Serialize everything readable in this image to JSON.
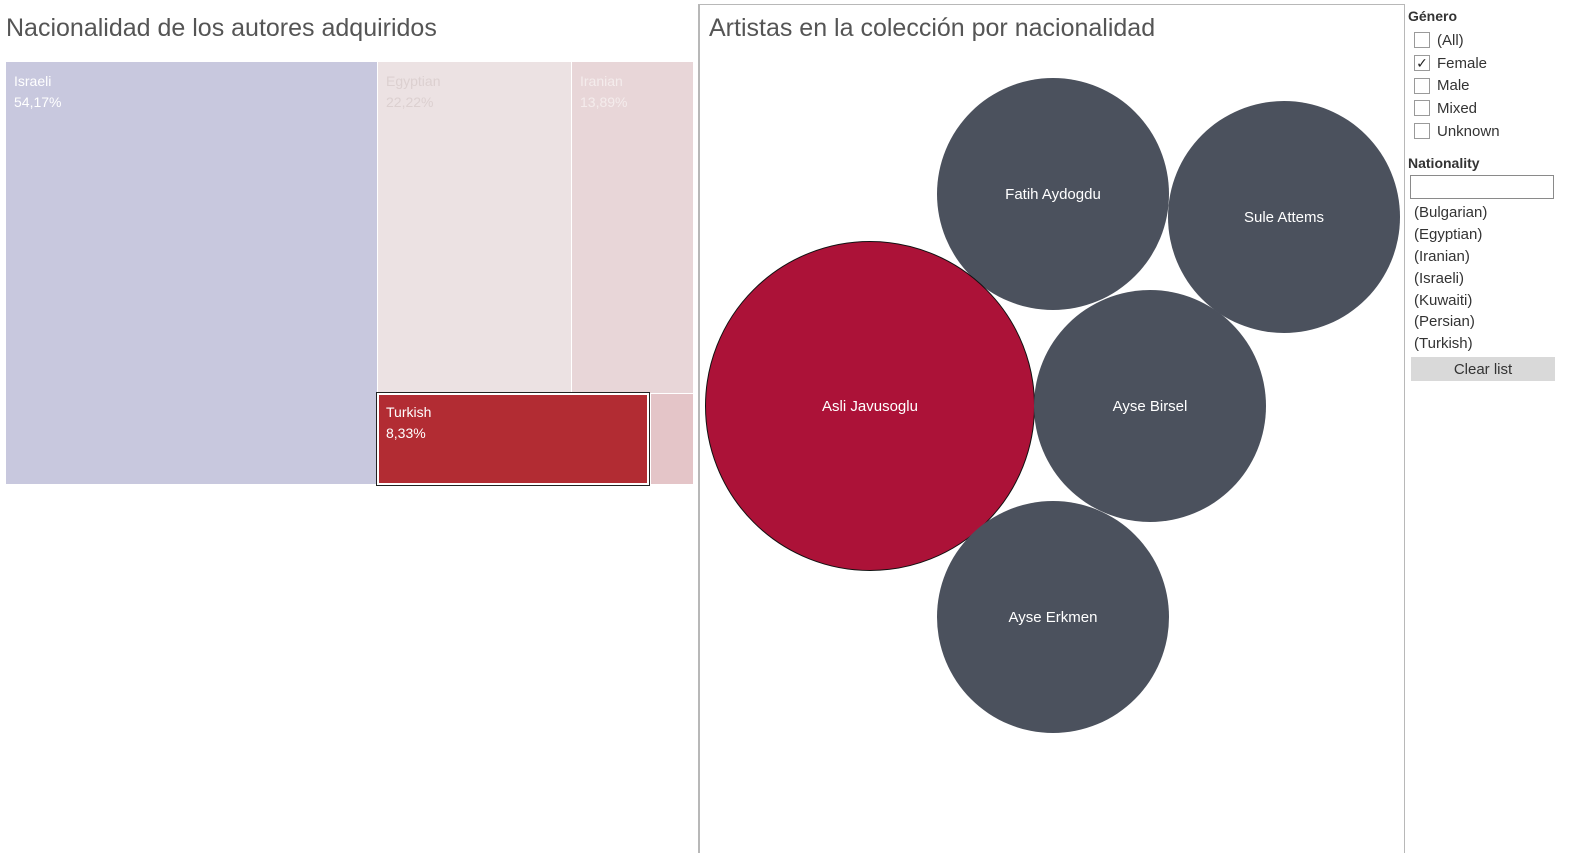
{
  "treemap": {
    "title": "Nacionalidad de los autores adquiridos",
    "cells": [
      {
        "nationality": "Israeli",
        "percent": "54,17%",
        "color": "#c8c8de",
        "text_color": "#ffffff"
      },
      {
        "nationality": "Egyptian",
        "percent": "22,22%",
        "color": "#ece2e3",
        "text_color": "#dcd0d0"
      },
      {
        "nationality": "Iranian",
        "percent": "13,89%",
        "color": "#e8d6d8",
        "text_color": "#f4ecec"
      },
      {
        "nationality": "Turkish",
        "percent": "8,33%",
        "color": "#b22c33",
        "text_color": "#ffffff"
      },
      {
        "nationality": "",
        "percent": "",
        "color": "#e4c5c8",
        "text_color": "#ffffff"
      }
    ]
  },
  "bubbles": {
    "title": "Artistas en la colección por nacionalidad",
    "colors": {
      "highlight": "#ac1238",
      "default": "#4b515d"
    },
    "artists": [
      {
        "name": "Fatih Aydogdu",
        "highlighted": false
      },
      {
        "name": "Sule Attems",
        "highlighted": false
      },
      {
        "name": "Asli Javusoglu",
        "highlighted": true
      },
      {
        "name": "Ayse Birsel",
        "highlighted": false
      },
      {
        "name": "Ayse Erkmen",
        "highlighted": false
      }
    ]
  },
  "filters": {
    "genero": {
      "heading": "Género",
      "options": [
        {
          "label": "(All)",
          "checked": false
        },
        {
          "label": "Female",
          "checked": true
        },
        {
          "label": "Male",
          "checked": false
        },
        {
          "label": "Mixed",
          "checked": false
        },
        {
          "label": "Unknown",
          "checked": false
        }
      ]
    },
    "nationality": {
      "heading": "Nationality",
      "search_value": "",
      "items": [
        "(Bulgarian)",
        "(Egyptian)",
        "(Iranian)",
        "(Israeli)",
        "(Kuwaiti)",
        "(Persian)",
        "(Turkish)"
      ],
      "clear_label": "Clear list"
    }
  }
}
